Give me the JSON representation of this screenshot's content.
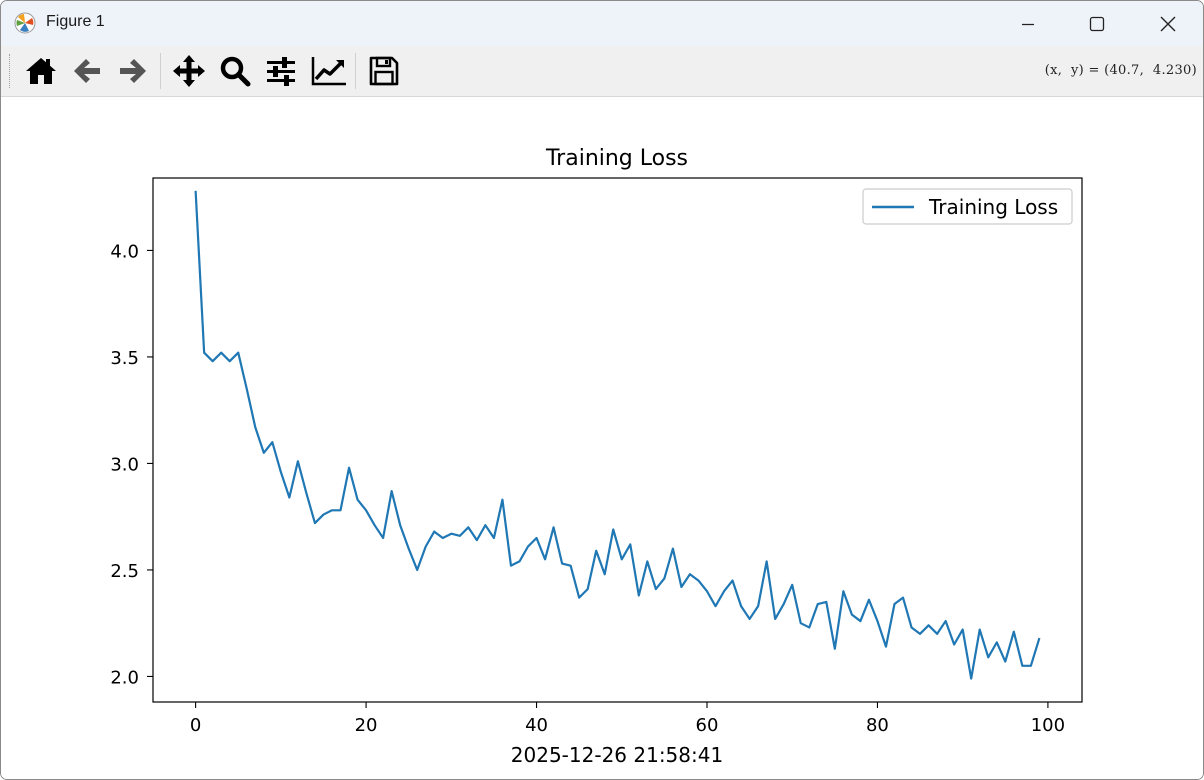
{
  "window": {
    "title": "Figure 1",
    "controls": {
      "minimize": "minimize",
      "maximize": "maximize",
      "close": "close"
    }
  },
  "toolbar": {
    "buttons": [
      {
        "name": "home",
        "icon": "home-icon"
      },
      {
        "name": "back",
        "icon": "back-arrow-icon"
      },
      {
        "name": "forward",
        "icon": "forward-arrow-icon"
      },
      {
        "name": "pan",
        "icon": "move-icon"
      },
      {
        "name": "zoom",
        "icon": "magnifier-icon"
      },
      {
        "name": "subplots",
        "icon": "sliders-icon"
      },
      {
        "name": "customize",
        "icon": "line-chart-icon"
      },
      {
        "name": "save",
        "icon": "floppy-disk-icon"
      }
    ],
    "coordinates": "(x,  y) = (40.7,  4.230)"
  },
  "footer_text": "2025-12-26 21:58:41",
  "chart_data": {
    "type": "line",
    "title": "Training Loss",
    "xlabel": "",
    "ylabel": "",
    "xlim": [
      -5,
      104
    ],
    "ylim": [
      1.88,
      4.34
    ],
    "xticks": [
      0,
      20,
      40,
      60,
      80,
      100
    ],
    "yticks": [
      2.0,
      2.5,
      3.0,
      3.5,
      4.0
    ],
    "grid": false,
    "legend_position": "upper right",
    "series": [
      {
        "name": "Training Loss",
        "color": "#1f77b4",
        "x": [
          0,
          1,
          2,
          3,
          4,
          5,
          6,
          7,
          8,
          9,
          10,
          11,
          12,
          13,
          14,
          15,
          16,
          17,
          18,
          19,
          20,
          21,
          22,
          23,
          24,
          25,
          26,
          27,
          28,
          29,
          30,
          31,
          32,
          33,
          34,
          35,
          36,
          37,
          38,
          39,
          40,
          41,
          42,
          43,
          44,
          45,
          46,
          47,
          48,
          49,
          50,
          51,
          52,
          53,
          54,
          55,
          56,
          57,
          58,
          59,
          60,
          61,
          62,
          63,
          64,
          65,
          66,
          67,
          68,
          69,
          70,
          71,
          72,
          73,
          74,
          75,
          76,
          77,
          78,
          79,
          80,
          81,
          82,
          83,
          84,
          85,
          86,
          87,
          88,
          89,
          90,
          91,
          92,
          93,
          94,
          95,
          96,
          97,
          98,
          99
        ],
        "values": [
          4.28,
          3.52,
          3.48,
          3.52,
          3.48,
          3.52,
          3.35,
          3.17,
          3.05,
          3.1,
          2.96,
          2.84,
          3.01,
          2.86,
          2.72,
          2.76,
          2.78,
          2.78,
          2.98,
          2.83,
          2.78,
          2.71,
          2.65,
          2.87,
          2.71,
          2.6,
          2.5,
          2.61,
          2.68,
          2.65,
          2.67,
          2.66,
          2.7,
          2.64,
          2.71,
          2.65,
          2.83,
          2.52,
          2.54,
          2.61,
          2.65,
          2.55,
          2.7,
          2.53,
          2.52,
          2.37,
          2.41,
          2.59,
          2.48,
          2.69,
          2.55,
          2.62,
          2.38,
          2.54,
          2.41,
          2.46,
          2.6,
          2.42,
          2.48,
          2.45,
          2.4,
          2.33,
          2.4,
          2.45,
          2.33,
          2.27,
          2.33,
          2.54,
          2.27,
          2.34,
          2.43,
          2.25,
          2.23,
          2.34,
          2.35,
          2.13,
          2.4,
          2.29,
          2.26,
          2.36,
          2.26,
          2.14,
          2.34,
          2.37,
          2.23,
          2.2,
          2.24,
          2.2,
          2.26,
          2.15,
          2.22,
          1.99,
          2.22,
          2.09,
          2.16,
          2.07,
          2.21,
          2.05,
          2.05,
          2.18
        ]
      }
    ]
  }
}
